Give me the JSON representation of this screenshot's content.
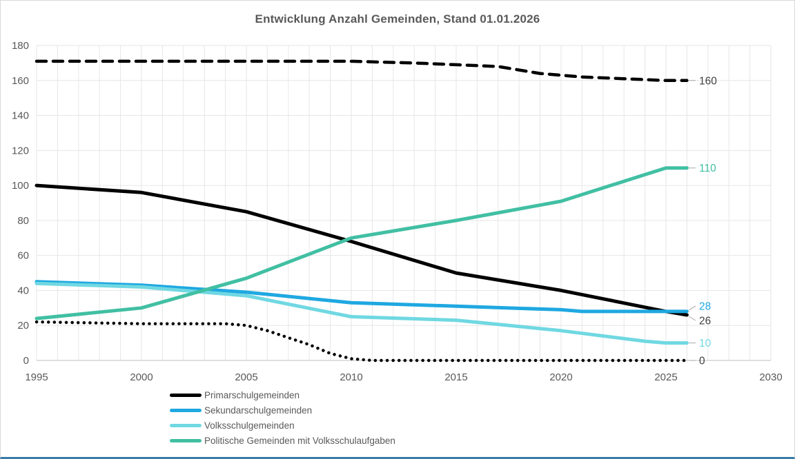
{
  "chart_data": {
    "type": "line",
    "title": "Entwicklung Anzahl Gemeinden, Stand 01.01.2026",
    "xlabel": "",
    "ylabel": "",
    "xlim": [
      1995,
      2030
    ],
    "ylim": [
      0,
      180
    ],
    "x_ticks": [
      1995,
      2000,
      2005,
      2010,
      2015,
      2020,
      2025,
      2030
    ],
    "y_ticks": [
      0,
      20,
      40,
      60,
      80,
      100,
      120,
      140,
      160,
      180
    ],
    "grid": {
      "horizontal": true,
      "vertical": true,
      "vertical_step_years": 1
    },
    "legend_position": "bottom-left",
    "series": [
      {
        "name": "",
        "in_legend": false,
        "line_style": "dashed",
        "color": "#000000",
        "end_label": "160",
        "end_label_color": "#404040",
        "points": [
          [
            1995,
            171
          ],
          [
            2000,
            171
          ],
          [
            2005,
            171
          ],
          [
            2010,
            171
          ],
          [
            2013,
            170
          ],
          [
            2015,
            169
          ],
          [
            2017,
            168
          ],
          [
            2019,
            164
          ],
          [
            2021,
            162
          ],
          [
            2023,
            161
          ],
          [
            2025,
            160
          ],
          [
            2026,
            160
          ]
        ]
      },
      {
        "name": "Primarschulgemeinden",
        "in_legend": true,
        "line_style": "solid",
        "color": "#000000",
        "end_label": "26",
        "end_label_color": "#404040",
        "end_label_dy": 8,
        "points": [
          [
            1995,
            100
          ],
          [
            2000,
            96
          ],
          [
            2005,
            85
          ],
          [
            2010,
            68
          ],
          [
            2015,
            50
          ],
          [
            2020,
            40
          ],
          [
            2025,
            28
          ],
          [
            2026,
            26
          ]
        ]
      },
      {
        "name": "Sekundarschulgemeinden",
        "in_legend": true,
        "line_style": "solid",
        "color": "#1FA8E1",
        "end_label": "28",
        "end_label_dy": -8,
        "points": [
          [
            1995,
            45
          ],
          [
            2000,
            43
          ],
          [
            2005,
            39
          ],
          [
            2010,
            33
          ],
          [
            2015,
            31
          ],
          [
            2020,
            29
          ],
          [
            2021,
            28
          ],
          [
            2025,
            28
          ],
          [
            2026,
            28
          ]
        ]
      },
      {
        "name": "Volksschulgemeinden",
        "in_legend": true,
        "line_style": "solid",
        "color": "#70D8E2",
        "end_label": "10",
        "points": [
          [
            1995,
            44
          ],
          [
            2000,
            42
          ],
          [
            2005,
            37
          ],
          [
            2010,
            25
          ],
          [
            2015,
            23
          ],
          [
            2020,
            17
          ],
          [
            2024,
            11
          ],
          [
            2025,
            10
          ],
          [
            2026,
            10
          ]
        ]
      },
      {
        "name": "Politische Gemeinden mit Volksschulaufgaben",
        "in_legend": true,
        "line_style": "solid",
        "color": "#41BFA3",
        "end_label": "110",
        "points": [
          [
            1995,
            24
          ],
          [
            2000,
            30
          ],
          [
            2005,
            47
          ],
          [
            2010,
            70
          ],
          [
            2015,
            80
          ],
          [
            2020,
            91
          ],
          [
            2025,
            110
          ],
          [
            2026,
            110
          ]
        ]
      },
      {
        "name": "",
        "in_legend": false,
        "line_style": "dotted",
        "color": "#000000",
        "end_label": "0",
        "end_label_color": "#404040",
        "points": [
          [
            1995,
            22
          ],
          [
            2000,
            21
          ],
          [
            2004,
            21
          ],
          [
            2005,
            20
          ],
          [
            2006,
            17
          ],
          [
            2007,
            13
          ],
          [
            2008,
            9
          ],
          [
            2009,
            4
          ],
          [
            2010,
            1
          ],
          [
            2011,
            0
          ],
          [
            2026,
            0
          ]
        ]
      }
    ]
  },
  "styles": {
    "background": "#ffffff",
    "frame_border": "#d9d9d9",
    "bottom_bar": "#3a7ca8",
    "grid_line": "#e6e6e6",
    "axis_line": "#bfbfbf",
    "tick_label": "#595959",
    "title_color": "#595959",
    "legend_label": "#595959",
    "leader_line": "#a6a6a6"
  }
}
